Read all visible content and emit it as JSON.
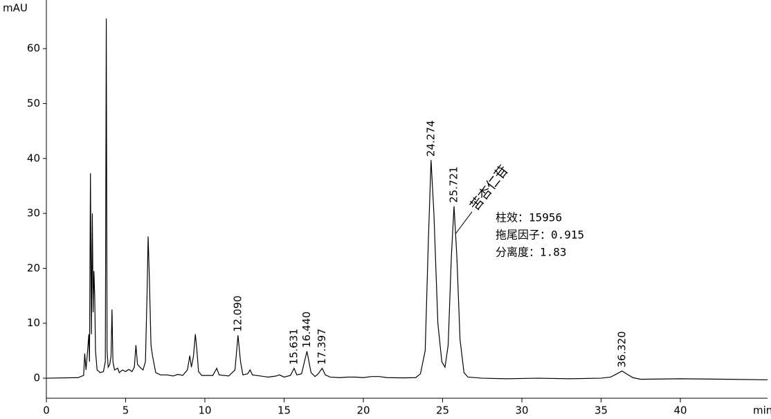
{
  "chart_data": {
    "type": "line",
    "x_label": "min",
    "y_label": "mAU",
    "color": "#000000",
    "xlim": [
      0,
      45.5
    ],
    "ylim": [
      -3.65,
      68.85
    ],
    "xticks": [
      0,
      5,
      10,
      15,
      20,
      25,
      30,
      35,
      40
    ],
    "yticks": [
      0,
      10,
      20,
      30,
      40,
      50,
      60
    ],
    "x": [
      0,
      2.0,
      2.35,
      2.42,
      2.5,
      2.6,
      2.68,
      2.72,
      2.78,
      2.84,
      2.9,
      2.95,
      3.0,
      3.05,
      3.1,
      3.2,
      3.4,
      3.6,
      3.72,
      3.78,
      3.83,
      3.9,
      4.0,
      4.08,
      4.14,
      4.2,
      4.3,
      4.5,
      4.6,
      4.8,
      5.0,
      5.2,
      5.4,
      5.55,
      5.65,
      5.75,
      5.9,
      6.1,
      6.25,
      6.35,
      6.42,
      6.5,
      6.6,
      6.7,
      6.8,
      6.9,
      7.2,
      7.6,
      8.0,
      8.3,
      8.6,
      8.9,
      9.05,
      9.15,
      9.28,
      9.4,
      9.5,
      9.6,
      9.8,
      10.5,
      10.75,
      10.9,
      11.5,
      11.9,
      12.09,
      12.25,
      12.4,
      12.7,
      12.85,
      13.0,
      14.0,
      14.5,
      14.7,
      15.0,
      15.4,
      15.63,
      15.8,
      16.1,
      16.44,
      16.7,
      16.95,
      17.15,
      17.4,
      17.6,
      17.9,
      18.5,
      19.0,
      19.5,
      20.0,
      20.5,
      21.0,
      21.5,
      22.5,
      23.3,
      23.6,
      23.9,
      24.1,
      24.27,
      24.45,
      24.7,
      24.95,
      25.15,
      25.35,
      25.55,
      25.72,
      25.9,
      26.1,
      26.35,
      26.6,
      27.5,
      29,
      31,
      33,
      35,
      35.6,
      36.0,
      36.32,
      36.6,
      37.0,
      37.5,
      40,
      43,
      45.5
    ],
    "values": [
      0,
      0.1,
      0.5,
      4.5,
      1.5,
      5,
      8,
      3,
      37.3,
      8,
      30,
      12,
      19.5,
      15,
      5,
      1.5,
      1,
      1.2,
      3,
      65.5,
      5,
      2,
      2.5,
      4,
      12.5,
      3,
      1.5,
      1.8,
      1,
      1.5,
      1.2,
      1.6,
      1.2,
      2,
      6,
      2.5,
      2,
      1.5,
      3,
      15,
      25.8,
      18,
      6,
      4,
      2.5,
      1,
      0.6,
      0.6,
      0.4,
      0.7,
      0.5,
      1.5,
      4.1,
      2,
      4,
      8,
      5,
      1.2,
      0.5,
      0.5,
      1.8,
      0.6,
      0.4,
      1.5,
      7.8,
      3,
      0.6,
      0.8,
      1.5,
      0.6,
      0.2,
      0.4,
      0.6,
      0.2,
      0.5,
      1.8,
      0.6,
      0.8,
      4.9,
      1,
      0.3,
      0.8,
      1.8,
      0.6,
      0.2,
      0.1,
      0.2,
      0.2,
      0.1,
      0.3,
      0.3,
      0.1,
      0.05,
      0.1,
      0.8,
      5,
      25,
      39.7,
      30,
      10,
      3,
      2,
      6,
      22,
      31.3,
      22,
      7,
      1,
      0.2,
      0,
      -0.1,
      0,
      -0.1,
      0,
      0.2,
      0.8,
      1.3,
      0.8,
      0.1,
      -0.2,
      -0.1,
      -0.2,
      -0.3
    ],
    "peak_labels": [
      {
        "value": 12.09,
        "label": "12.090",
        "height": 7.8
      },
      {
        "value": 15.631,
        "label": "15.631",
        "height": 1.8
      },
      {
        "value": 16.44,
        "label": "16.440",
        "height": 4.9
      },
      {
        "value": 17.397,
        "label": "17.397",
        "height": 1.8
      },
      {
        "value": 24.274,
        "label": "24.274",
        "height": 39.7
      },
      {
        "value": 25.721,
        "label": "25.721",
        "height": 31.3
      },
      {
        "value": 36.32,
        "label": "36.320",
        "height": 1.3
      }
    ],
    "compound_label": "苦杏仁苷",
    "notes": [
      "柱效：15956",
      "拖尾因子：0.915",
      "分离度：1.83"
    ]
  }
}
